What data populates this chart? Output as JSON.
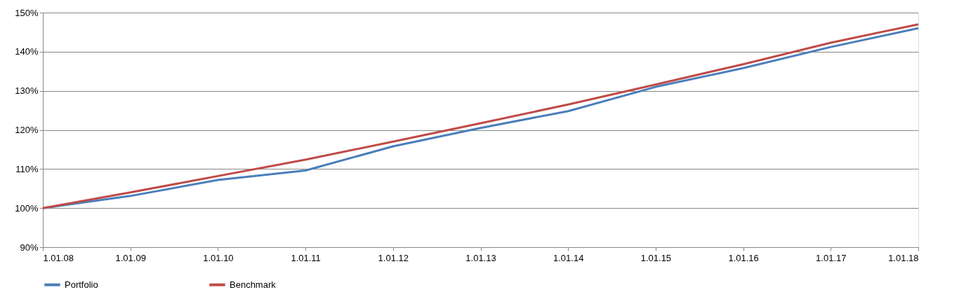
{
  "chart_data": {
    "type": "line",
    "categories": [
      "1.01.08",
      "1.01.09",
      "1.01.10",
      "1.01.11",
      "1.01.12",
      "1.01.13",
      "1.01.14",
      "1.01.15",
      "1.01.16",
      "1.01.17",
      "1.01.18"
    ],
    "series": [
      {
        "name": "Portfolio",
        "color": "#4a7ebb",
        "values": [
          100,
          103.1,
          107.2,
          109.6,
          115.8,
          120.5,
          124.8,
          131,
          135.8,
          141.2,
          146
        ]
      },
      {
        "name": "Benchmark",
        "color": "#be4b48",
        "values": [
          100,
          104,
          108.2,
          112.4,
          117,
          121.7,
          126.5,
          131.6,
          136.8,
          142.3,
          147
        ]
      }
    ],
    "ylim": [
      90,
      150
    ],
    "yticks": [
      {
        "value": 90,
        "label": "90%"
      },
      {
        "value": 100,
        "label": "100%"
      },
      {
        "value": 110,
        "label": "110%"
      },
      {
        "value": 120,
        "label": "120%"
      },
      {
        "value": 130,
        "label": "130%"
      },
      {
        "value": 140,
        "label": "140%"
      },
      {
        "value": 150,
        "label": "150%"
      }
    ],
    "grid": "y",
    "legend": "bottom",
    "line_style": "solid",
    "marker": "none"
  }
}
